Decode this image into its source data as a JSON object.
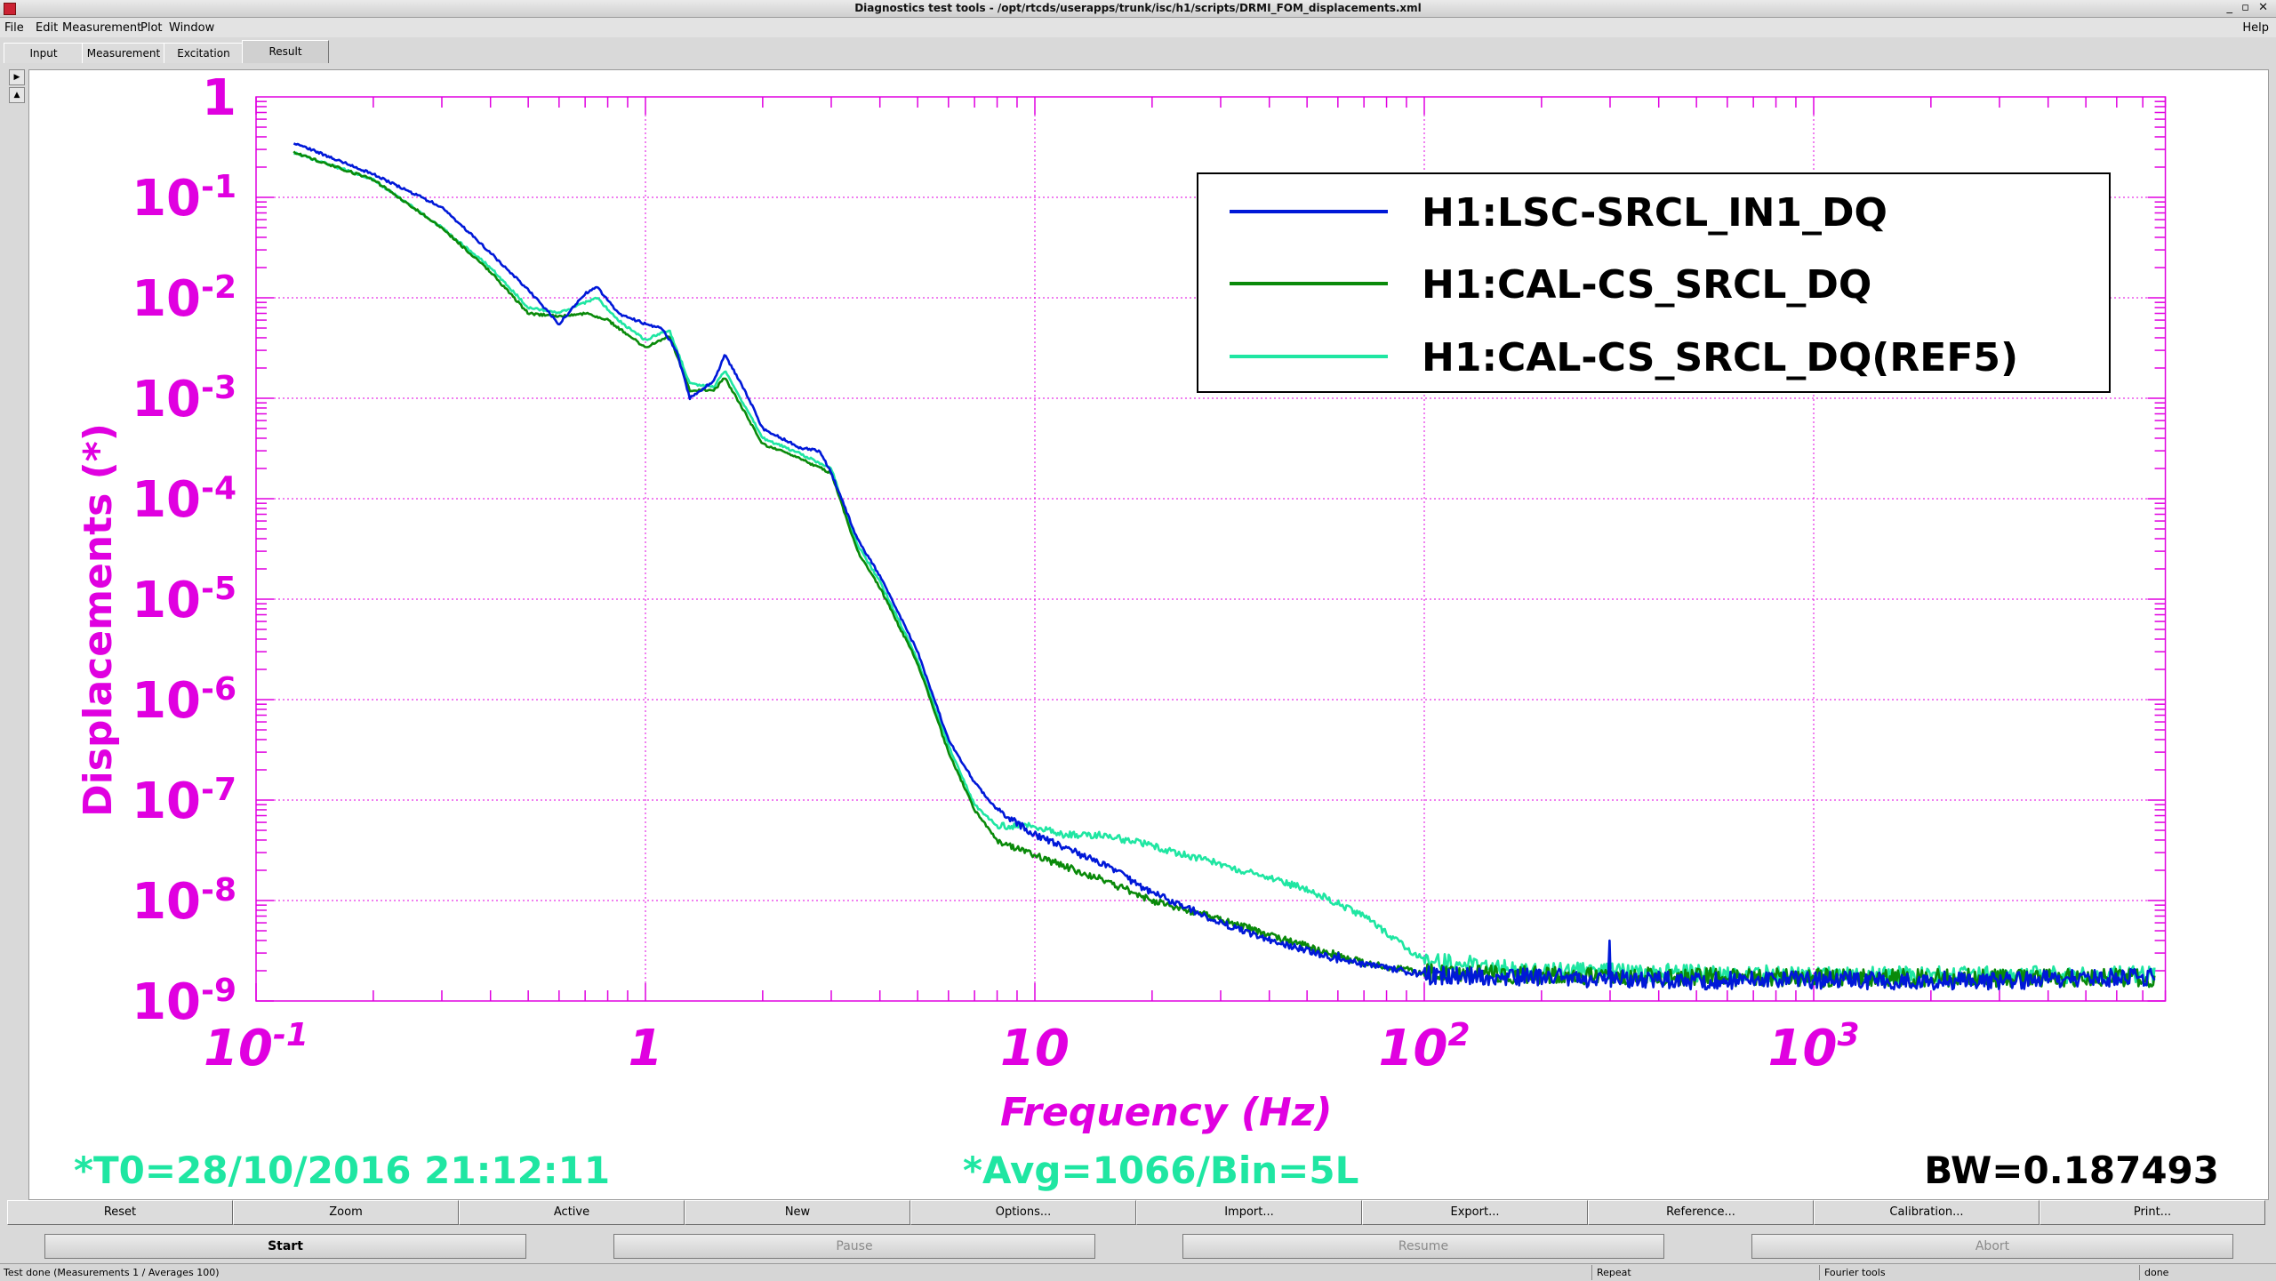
{
  "window": {
    "title": "Diagnostics test tools - /opt/rtcds/userapps/trunk/isc/h1/scripts/DRMI_FOM_displacements.xml",
    "controls": "_ ▫ ✕"
  },
  "menu": {
    "file": "File",
    "edit": "Edit",
    "measurement": "Measurement",
    "plot": "Plot",
    "window": "Window",
    "help": "Help"
  },
  "tabs": [
    "Input",
    "Measurement",
    "Excitation",
    "Result"
  ],
  "tabs_active": "Result",
  "icons": {
    "app": "app-icon",
    "scroll_right": "arrow-right-icon",
    "scroll_up": "arrow-up-icon"
  },
  "colors": {
    "axis": "#e000e0",
    "grid": "#e000e0",
    "blue": "#0018d8",
    "green": "#0a8a0a",
    "ref": "#1fe6a2",
    "info": "#1fe6a2",
    "bw": "#000000"
  },
  "info": {
    "t0": "*T0=28/10/2016 21:12:11",
    "avg": "*Avg=1066/Bin=5L",
    "bw": "BW=0.187493"
  },
  "chart_data": {
    "type": "line",
    "xlabel": "Frequency (Hz)",
    "ylabel": "Displacements (*)",
    "x_scale": "log",
    "y_scale": "log",
    "xlim": [
      0.1,
      8000
    ],
    "ylim": [
      1e-09,
      1
    ],
    "grid": true,
    "legend_position": "top-right",
    "x_ticks": [
      {
        "base": "10",
        "exp": "-1"
      },
      {
        "base": "1",
        "exp": ""
      },
      {
        "base": "10",
        "exp": ""
      },
      {
        "base": "10",
        "exp": "2"
      },
      {
        "base": "10",
        "exp": "3"
      }
    ],
    "y_ticks": [
      {
        "base": "1",
        "exp": ""
      },
      {
        "base": "10",
        "exp": "-1"
      },
      {
        "base": "10",
        "exp": "-2"
      },
      {
        "base": "10",
        "exp": "-3"
      },
      {
        "base": "10",
        "exp": "-4"
      },
      {
        "base": "10",
        "exp": "-5"
      },
      {
        "base": "10",
        "exp": "-6"
      },
      {
        "base": "10",
        "exp": "-7"
      },
      {
        "base": "10",
        "exp": "-8"
      },
      {
        "base": "10",
        "exp": "-9"
      }
    ],
    "series": [
      {
        "name": "H1:LSC-SRCL_IN1_DQ",
        "color": "#0018d8",
        "noise_above_hz": 100,
        "peaks": [
          [
            60,
            3e-09
          ],
          [
            300,
            4e-09
          ]
        ],
        "points": [
          [
            0.125,
            0.35
          ],
          [
            0.2,
            0.17
          ],
          [
            0.3,
            0.08
          ],
          [
            0.4,
            0.028
          ],
          [
            0.5,
            0.012
          ],
          [
            0.6,
            0.0055
          ],
          [
            0.7,
            0.011
          ],
          [
            0.75,
            0.013
          ],
          [
            0.85,
            0.007
          ],
          [
            1.0,
            0.0055
          ],
          [
            1.1,
            0.005
          ],
          [
            1.2,
            0.003
          ],
          [
            1.3,
            0.001
          ],
          [
            1.5,
            0.0015
          ],
          [
            1.6,
            0.0027
          ],
          [
            1.8,
            0.0012
          ],
          [
            2.0,
            0.0005
          ],
          [
            2.5,
            0.00032
          ],
          [
            2.8,
            0.0003
          ],
          [
            3.0,
            0.00018
          ],
          [
            3.5,
            4e-05
          ],
          [
            4.0,
            1.7e-05
          ],
          [
            5.0,
            3e-06
          ],
          [
            6.0,
            4e-07
          ],
          [
            7.0,
            1.5e-07
          ],
          [
            8.0,
            8e-08
          ],
          [
            10,
            4.5e-08
          ],
          [
            15,
            2.3e-08
          ],
          [
            20,
            1.2e-08
          ],
          [
            30,
            6e-09
          ],
          [
            40,
            4e-09
          ],
          [
            60,
            2.6e-09
          ],
          [
            100,
            1.8e-09
          ],
          [
            200,
            1.7e-09
          ],
          [
            500,
            1.6e-09
          ],
          [
            1000,
            1.6e-09
          ],
          [
            3000,
            1.6e-09
          ],
          [
            6000,
            1.7e-09
          ],
          [
            7500,
            1.7e-09
          ]
        ]
      },
      {
        "name": "H1:CAL-CS_SRCL_DQ",
        "color": "#0a8a0a",
        "noise_above_hz": 100,
        "peaks": [],
        "points": [
          [
            0.125,
            0.28
          ],
          [
            0.2,
            0.15
          ],
          [
            0.3,
            0.05
          ],
          [
            0.4,
            0.018
          ],
          [
            0.5,
            0.007
          ],
          [
            0.6,
            0.0065
          ],
          [
            0.7,
            0.007
          ],
          [
            0.8,
            0.006
          ],
          [
            1.0,
            0.0032
          ],
          [
            1.15,
            0.0042
          ],
          [
            1.3,
            0.0012
          ],
          [
            1.5,
            0.0012
          ],
          [
            1.6,
            0.0016
          ],
          [
            2.0,
            0.00035
          ],
          [
            2.5,
            0.00025
          ],
          [
            3.0,
            0.00018
          ],
          [
            3.5,
            3e-05
          ],
          [
            4.0,
            1.3e-05
          ],
          [
            5.0,
            2.3e-06
          ],
          [
            6.0,
            3e-07
          ],
          [
            7.0,
            8e-08
          ],
          [
            8.0,
            4e-08
          ],
          [
            10,
            2.8e-08
          ],
          [
            15,
            1.6e-08
          ],
          [
            20,
            1e-08
          ],
          [
            30,
            6.5e-09
          ],
          [
            50,
            3.5e-09
          ],
          [
            70,
            2.4e-09
          ],
          [
            100,
            1.9e-09
          ],
          [
            200,
            1.8e-09
          ],
          [
            1000,
            1.7e-09
          ],
          [
            7500,
            1.7e-09
          ]
        ]
      },
      {
        "name": "H1:CAL-CS_SRCL_DQ(REF5)",
        "color": "#1fe6a2",
        "noise_above_hz": 100,
        "peaks": [
          [
            60,
            1e-08
          ]
        ],
        "points": [
          [
            0.125,
            0.28
          ],
          [
            0.2,
            0.15
          ],
          [
            0.3,
            0.05
          ],
          [
            0.4,
            0.02
          ],
          [
            0.5,
            0.008
          ],
          [
            0.6,
            0.007
          ],
          [
            0.7,
            0.009
          ],
          [
            0.75,
            0.01
          ],
          [
            0.85,
            0.006
          ],
          [
            1.0,
            0.0038
          ],
          [
            1.15,
            0.0048
          ],
          [
            1.3,
            0.0014
          ],
          [
            1.5,
            0.0013
          ],
          [
            1.6,
            0.0019
          ],
          [
            2.0,
            0.0004
          ],
          [
            2.5,
            0.00028
          ],
          [
            3.0,
            0.0002
          ],
          [
            3.5,
            3.5e-05
          ],
          [
            4.0,
            1.5e-05
          ],
          [
            5.0,
            2.5e-06
          ],
          [
            6.0,
            3.5e-07
          ],
          [
            7.0,
            9e-08
          ],
          [
            8.0,
            5.5e-08
          ],
          [
            10,
            5.5e-08
          ],
          [
            12,
            4.5e-08
          ],
          [
            15,
            4.5e-08
          ],
          [
            20,
            3.5e-08
          ],
          [
            30,
            2.3e-08
          ],
          [
            50,
            1.3e-08
          ],
          [
            70,
            7e-09
          ],
          [
            100,
            2.5e-09
          ],
          [
            200,
            2e-09
          ],
          [
            1000,
            1.8e-09
          ],
          [
            7500,
            1.8e-09
          ]
        ]
      }
    ]
  },
  "buttons_row1": [
    "Reset",
    "Zoom",
    "Active",
    "New",
    "Options...",
    "Import...",
    "Export...",
    "Reference...",
    "Calibration...",
    "Print..."
  ],
  "buttons_row2": [
    "Start",
    "Pause",
    "Resume",
    "Abort"
  ],
  "status": {
    "left": "Test done (Measurements 1 / Averages 100)",
    "repeat": "Repeat",
    "fourier": "Fourier tools",
    "done": "done"
  }
}
